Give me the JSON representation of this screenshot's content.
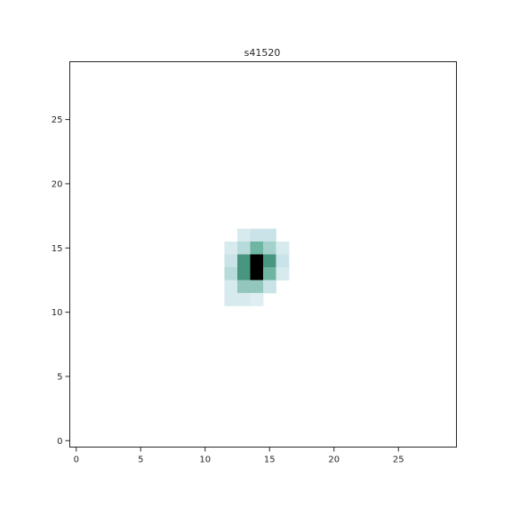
{
  "chart_data": {
    "type": "heatmap",
    "title": "s41520",
    "xlabel": "",
    "ylabel": "",
    "xlim": [
      -0.5,
      29.5
    ],
    "ylim": [
      -0.5,
      29.5
    ],
    "x_ticks": [
      0,
      5,
      10,
      15,
      20,
      25
    ],
    "y_ticks": [
      0,
      5,
      10,
      15,
      20,
      25
    ],
    "grid": false,
    "colormap": "white-to-teal-to-black",
    "colors": {
      "low": "#ffffff",
      "light": "#c9e3e8",
      "mid": "#6fb5a2",
      "high": "#2e7f6a",
      "max": "#000000",
      "axis": "#262626"
    },
    "cells": [
      {
        "x": 13,
        "y": 16,
        "v": 0.15
      },
      {
        "x": 14,
        "y": 16,
        "v": 0.2
      },
      {
        "x": 15,
        "y": 16,
        "v": 0.2
      },
      {
        "x": 12,
        "y": 15,
        "v": 0.15
      },
      {
        "x": 13,
        "y": 15,
        "v": 0.25
      },
      {
        "x": 14,
        "y": 15,
        "v": 0.45
      },
      {
        "x": 15,
        "y": 15,
        "v": 0.3
      },
      {
        "x": 16,
        "y": 15,
        "v": 0.15
      },
      {
        "x": 12,
        "y": 14,
        "v": 0.2
      },
      {
        "x": 13,
        "y": 14,
        "v": 0.6
      },
      {
        "x": 14,
        "y": 14,
        "v": 1.0
      },
      {
        "x": 15,
        "y": 14,
        "v": 0.6
      },
      {
        "x": 16,
        "y": 14,
        "v": 0.2
      },
      {
        "x": 12,
        "y": 13,
        "v": 0.25
      },
      {
        "x": 13,
        "y": 13,
        "v": 0.6
      },
      {
        "x": 14,
        "y": 13,
        "v": 1.0
      },
      {
        "x": 15,
        "y": 13,
        "v": 0.45
      },
      {
        "x": 16,
        "y": 13,
        "v": 0.15
      },
      {
        "x": 12,
        "y": 12,
        "v": 0.15
      },
      {
        "x": 13,
        "y": 12,
        "v": 0.35
      },
      {
        "x": 14,
        "y": 12,
        "v": 0.35
      },
      {
        "x": 15,
        "y": 12,
        "v": 0.2
      },
      {
        "x": 12,
        "y": 11,
        "v": 0.15
      },
      {
        "x": 13,
        "y": 11,
        "v": 0.15
      },
      {
        "x": 14,
        "y": 11,
        "v": 0.12
      }
    ]
  }
}
